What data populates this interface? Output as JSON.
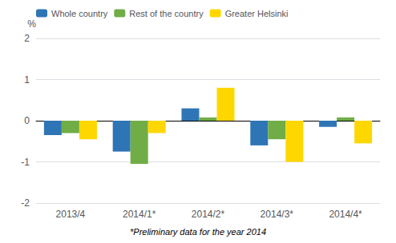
{
  "chart_data": {
    "type": "bar",
    "categories": [
      "2013/4",
      "2014/1*",
      "2014/2*",
      "2014/3*",
      "2014/4*"
    ],
    "series": [
      {
        "name": "Whole country",
        "color": "#2E75B6",
        "values": [
          -0.35,
          -0.75,
          0.3,
          -0.6,
          -0.15
        ]
      },
      {
        "name": "Rest of the country",
        "color": "#70AD47",
        "values": [
          -0.3,
          -1.05,
          0.08,
          -0.45,
          0.08
        ]
      },
      {
        "name": "Greater Helsinki",
        "color": "#FFD700",
        "values": [
          -0.45,
          -0.3,
          0.8,
          -1.0,
          -0.55
        ]
      }
    ],
    "ylabel": "%",
    "footnote": "*Preliminary data for the year 2014",
    "ylim": [
      -2,
      2
    ],
    "yticks": [
      -2,
      -1,
      0,
      1,
      2
    ],
    "grid": true,
    "legend": "upper left"
  }
}
